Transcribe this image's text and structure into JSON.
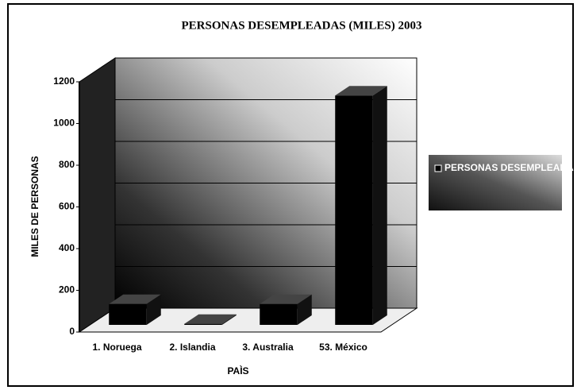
{
  "chart_data": {
    "type": "bar3d",
    "title": "PERSONAS DESEMPLEADAS (MILES) 2003",
    "x_label": "PAÌS",
    "y_label": "MILES DE PERSONAS",
    "categories": [
      "1. Noruega",
      "2. Islandia",
      "3. Australia",
      "53. México"
    ],
    "series": [
      {
        "name": "PERSONAS DESEMPLEADAS",
        "color": "#000000",
        "values": [
          100,
          5,
          100,
          1100
        ]
      }
    ],
    "ylim": [
      0,
      1200
    ],
    "yticks": [
      0,
      200,
      400,
      600,
      800,
      1000,
      1200
    ],
    "grid": true,
    "legend": "right"
  }
}
